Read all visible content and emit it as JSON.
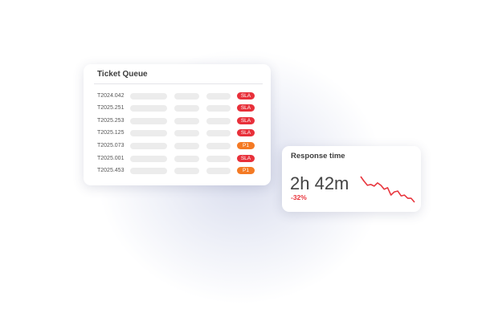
{
  "colors": {
    "sla": "#e8303a",
    "p1": "#f47a24",
    "sparkline": "#e8343c"
  },
  "ticket_queue": {
    "title": "Ticket Queue",
    "rows": [
      {
        "id": "T2024.042",
        "badge": "SLA"
      },
      {
        "id": "T2025.251",
        "badge": "SLA"
      },
      {
        "id": "T2025.253",
        "badge": "SLA"
      },
      {
        "id": "T2025.125",
        "badge": "SLA"
      },
      {
        "id": "T2025.073",
        "badge": "P1"
      },
      {
        "id": "T2025.001",
        "badge": "SLA"
      },
      {
        "id": "T2025.453",
        "badge": "P1"
      }
    ]
  },
  "response_time": {
    "title": "Response time",
    "value": "2h 42m",
    "change": "-32%",
    "trend": [
      100,
      82,
      67,
      70,
      64,
      76,
      67,
      52,
      58,
      30,
      42,
      45,
      27,
      30,
      18,
      18,
      3
    ]
  }
}
